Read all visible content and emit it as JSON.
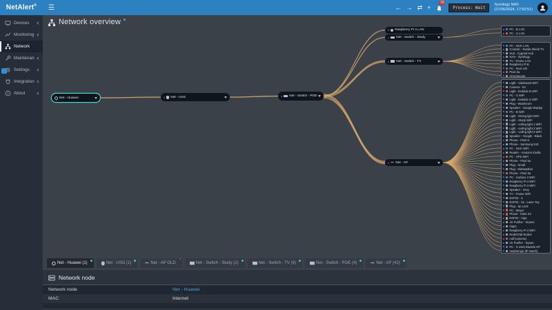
{
  "topbar": {
    "app_name": "NetAlert",
    "app_name_sup": "®",
    "menu_icon": "hamburger",
    "nav": [
      {
        "icon": "arrow-back",
        "glyph": "←"
      },
      {
        "icon": "arrow-forward",
        "glyph": "→"
      },
      {
        "icon": "refresh",
        "glyph": "⇄"
      },
      {
        "icon": "move",
        "glyph": "+"
      }
    ],
    "notifications": {
      "icon": "bell",
      "badge": "15"
    },
    "process_status": "Process: Wait",
    "host": {
      "name": "Synology NAS",
      "datetime": "(27/06/2024, 17:50:51)"
    }
  },
  "sidebar": {
    "items": [
      {
        "label": "Devices",
        "icon": "devices",
        "collapsible": true
      },
      {
        "label": "Monitoring",
        "icon": "monitoring",
        "collapsible": true
      },
      {
        "label": "Network",
        "icon": "network",
        "active": true
      },
      {
        "label": "Maintenance",
        "icon": "maintenance",
        "collapsible": true
      },
      {
        "label": "Settings",
        "icon": "settings",
        "collapsible": true
      },
      {
        "label": "Integrations",
        "icon": "integrations",
        "collapsible": true
      },
      {
        "label": "About",
        "icon": "about",
        "collapsible": true
      }
    ]
  },
  "page": {
    "title": "Network overview"
  },
  "topology": {
    "nodes": [
      {
        "id": "huawei",
        "label": "Net - Huawei",
        "icon": "globe",
        "selected": true,
        "caret": true
      },
      {
        "id": "usg",
        "label": "Net - USG",
        "icon": "shield",
        "port": "3",
        "caret": true
      },
      {
        "id": "poe",
        "label": "Net - Switch - POE",
        "icon": "switch",
        "port": "4",
        "caret": true
      },
      {
        "id": "rpi",
        "label": "Raspberry Pi 4 LAN",
        "icon": "pi",
        "port": "5"
      },
      {
        "id": "study",
        "label": "Net - Switch - Study",
        "icon": "switch",
        "port": "1",
        "caret": true
      },
      {
        "id": "tv",
        "label": "Net - Switch - TV",
        "icon": "switch",
        "port": "4",
        "caret": true
      },
      {
        "id": "ap",
        "label": "Net - AP",
        "icon": "wifi",
        "port": "2",
        "caret": true
      }
    ],
    "groups": [
      {
        "id": "study",
        "rows": [
          {
            "n": "PC - B LAN"
          },
          {
            "n": "PC - S LAN",
            "s": "err"
          }
        ]
      },
      {
        "id": "tv",
        "rows": [
          {
            "n": "PC - NUC LAN"
          },
          {
            "n": "Console - Nvidia Shield TV"
          },
          {
            "n": "Hub - Cygnett Hub"
          },
          {
            "n": "NAS - Synology"
          },
          {
            "n": "TV - Frame LAN"
          },
          {
            "n": "Raspberry Pi B"
          },
          {
            "n": "PC - NUC eth"
          },
          {
            "n": "Pixel 3a",
            "s": "err"
          },
          {
            "n": "Chromecast"
          }
        ]
      },
      {
        "id": "ap",
        "rows": [
          {
            "n": "Light - Sideboard WiFi"
          },
          {
            "n": "Camera - E1"
          },
          {
            "n": "Light - bedside B WiFi",
            "s": "err"
          },
          {
            "n": "PC - S WiFi"
          },
          {
            "n": "Light - bedside S WiFi"
          },
          {
            "n": "Plug - Washroom"
          },
          {
            "n": "Speaker - Google Display"
          },
          {
            "n": "PC - B WiFi"
          },
          {
            "n": "Light - Dining light WiFi"
          },
          {
            "n": "Light - Study WiFi"
          },
          {
            "n": "Light - ceiling light 1 WiFi"
          },
          {
            "n": "Light - ceiling light 2 WiFi"
          },
          {
            "n": "Light - ceiling light 3 WiFi"
          },
          {
            "n": "Speaker - Google - Black"
          },
          {
            "n": "Phone - Pixel 6"
          },
          {
            "n": "Phone - Samsung S10"
          },
          {
            "n": "PC - NUC WiFi"
          },
          {
            "n": "Reader - Amazon Kindle"
          },
          {
            "n": "PC - XPS WiFi",
            "s": "err"
          },
          {
            "n": "Phone - Pixel 6a"
          },
          {
            "n": "Plug - Small"
          },
          {
            "n": "Plug - Dishwasher"
          },
          {
            "n": "Phone - Pixel 3a",
            "s": "err"
          },
          {
            "n": "PC - Surface 4 WiFi"
          },
          {
            "n": "Raspberry Pi 4 WiFi"
          },
          {
            "n": "Raspberry Pi 3 WiFi"
          },
          {
            "n": "Speaker - Grey"
          },
          {
            "n": "TV - Frame WiFi"
          },
          {
            "n": "ESP32 - 3"
          },
          {
            "n": "ESP32 - 3a - Laser Toy"
          },
          {
            "n": "Plug - Sp Lock"
          },
          {
            "n": "PC - Mayer",
            "s": "err"
          },
          {
            "n": "Phone - Moto X2",
            "s": "err"
          },
          {
            "n": "ESP32 - Vigo"
          },
          {
            "n": "Air Purifier - Xiaomi"
          },
          {
            "n": "Oppo"
          },
          {
            "n": "Raspberry Pi 4 WiFi"
          },
          {
            "n": "RedmiTab Redmi"
          },
          {
            "n": "null (camera)",
            "s": "err"
          },
          {
            "n": "Air Purifier - Dyson"
          },
          {
            "n": "PC - S work Daniele HP"
          },
          {
            "n": "raspberrypi (IP watch)"
          }
        ]
      }
    ]
  },
  "tabs": [
    {
      "label": "Net - Huawei (1)",
      "icon": "globe",
      "dot": "green",
      "active": true
    },
    {
      "label": "Net - USG (1)",
      "icon": "shield",
      "dot": "green"
    },
    {
      "label": "Net - AP OLD",
      "icon": "wifi",
      "dot": "red-star"
    },
    {
      "label": "Net - Switch - Study (2)",
      "icon": "switch",
      "dot": "green"
    },
    {
      "label": "Net - Switch - TV (9)",
      "icon": "switch",
      "dot": "green"
    },
    {
      "label": "Net - Switch - POE (4)",
      "icon": "switch",
      "dot": "green"
    },
    {
      "label": "Net - AP (42)",
      "icon": "wifi",
      "dot": "green"
    }
  ],
  "panel": {
    "title": "Network node",
    "icon": "network-node",
    "rows": [
      {
        "label": "Network node",
        "value": "Net - Huawei",
        "link": true
      },
      {
        "label": "MAC",
        "value": "Internet"
      }
    ]
  },
  "colors": {
    "accent_blue": "#2e81c1",
    "edge": "#d9a86a",
    "selected": "#3fd6cb",
    "link": "#4da3dc",
    "green_dot": "#43d17c",
    "alert_red": "#d9534f"
  }
}
